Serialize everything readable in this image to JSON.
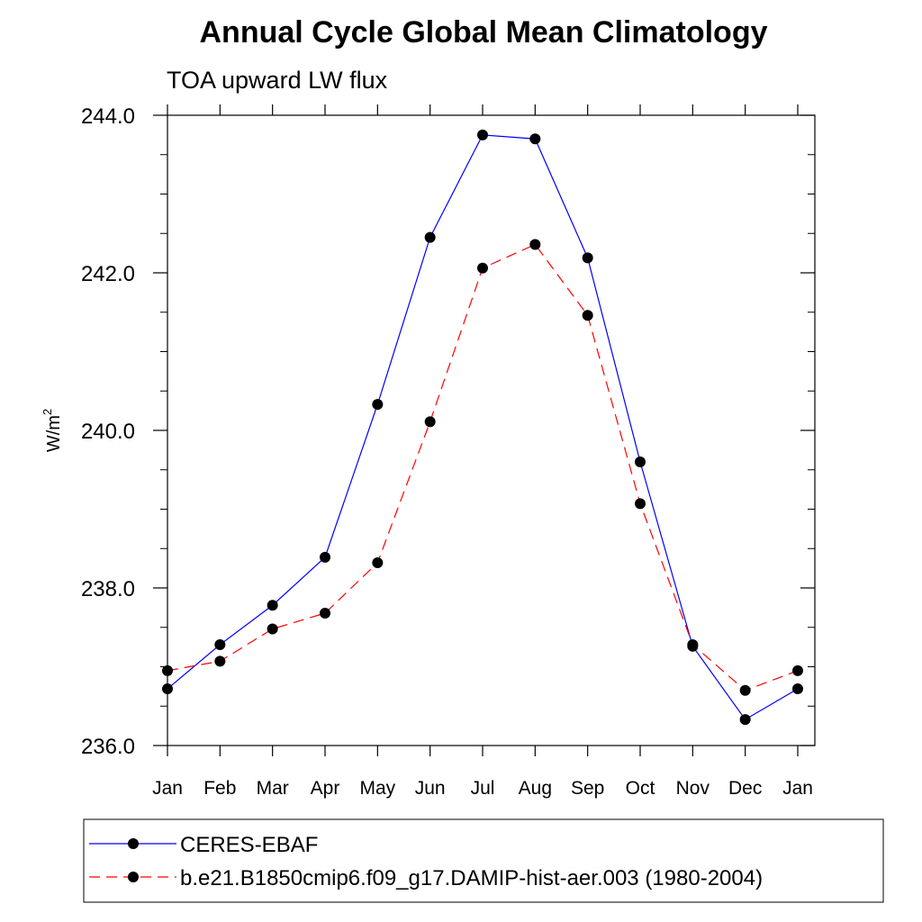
{
  "chart_data": {
    "type": "line",
    "title": "Annual Cycle Global Mean Climatology",
    "subtitle": "TOA upward LW flux",
    "ylabel": "W/m",
    "ylabel_sup": "2",
    "xlabel": "",
    "categories": [
      "Jan",
      "Feb",
      "Mar",
      "Apr",
      "May",
      "Jun",
      "Jul",
      "Aug",
      "Sep",
      "Oct",
      "Nov",
      "Dec",
      "Jan"
    ],
    "ylim": [
      236.0,
      244.0
    ],
    "yticks": [
      236.0,
      238.0,
      240.0,
      242.0,
      244.0
    ],
    "ytick_labels": [
      "236.0",
      "238.0",
      "240.0",
      "242.0",
      "244.0"
    ],
    "y_minor_step": 0.5,
    "legend_position": "bottom",
    "series": [
      {
        "name": "CERES-EBAF",
        "color": "#0000ff",
        "style": "solid",
        "values": [
          236.72,
          237.28,
          237.78,
          238.39,
          240.33,
          242.45,
          243.75,
          243.7,
          242.19,
          239.6,
          237.26,
          236.33,
          236.72
        ]
      },
      {
        "name": "b.e21.B1850cmip6.f09_g17.DAMIP-hist-aer.003 (1980-2004)",
        "color": "#ff0000",
        "style": "dashed",
        "values": [
          236.95,
          237.07,
          237.48,
          237.68,
          238.32,
          240.11,
          242.06,
          242.36,
          241.46,
          239.07,
          237.28,
          236.7,
          236.95
        ]
      }
    ]
  }
}
